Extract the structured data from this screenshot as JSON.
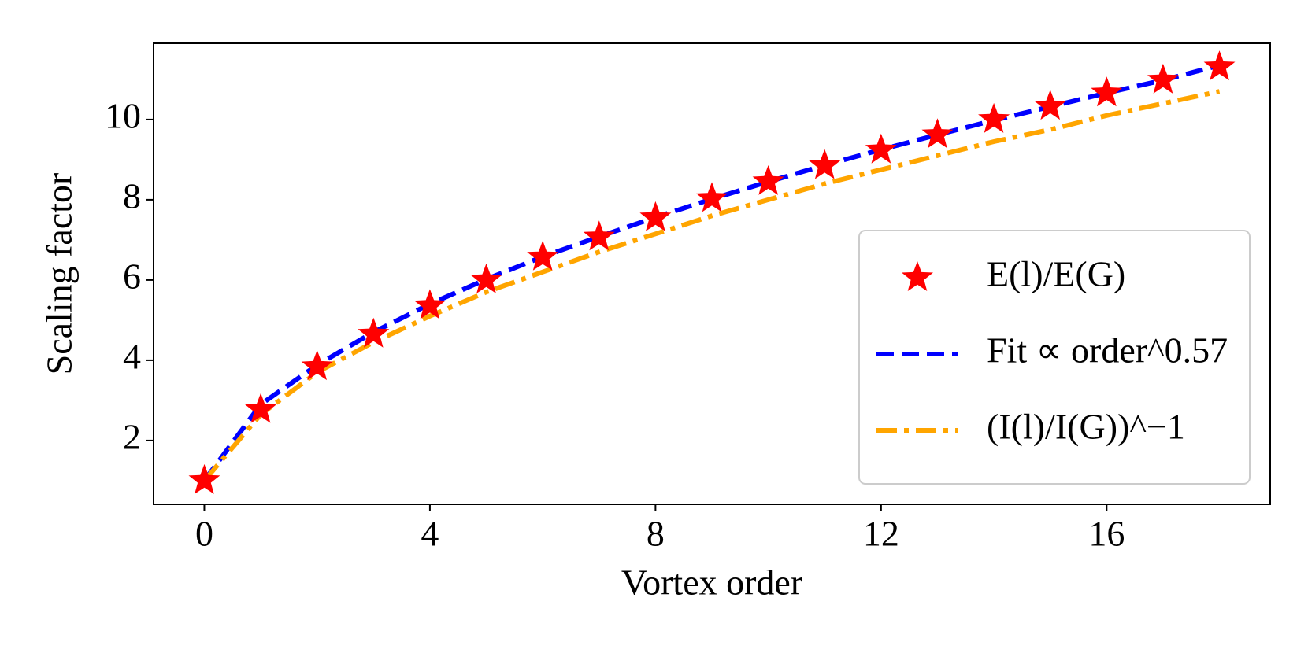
{
  "chart_data": {
    "type": "line",
    "x_label": "Vortex order",
    "y_label": "Scaling factor",
    "x": [
      0,
      1,
      2,
      3,
      4,
      5,
      6,
      7,
      8,
      9,
      10,
      11,
      12,
      13,
      14,
      15,
      16,
      17,
      18
    ],
    "series": [
      {
        "name": "E(l)/E(G)",
        "color": "#ff0000",
        "marker": "star",
        "values": [
          1.0,
          2.77,
          3.84,
          4.65,
          5.36,
          6.0,
          6.57,
          7.07,
          7.55,
          8.03,
          8.45,
          8.85,
          9.24,
          9.62,
          10.0,
          10.33,
          10.66,
          10.98,
          11.31
        ]
      },
      {
        "name": "Fit ∝ order^0.57",
        "color": "#0000ff",
        "linestyle": "dashed",
        "values": [
          1.0,
          2.9,
          3.88,
          4.7,
          5.4,
          6.02,
          6.58,
          7.08,
          7.56,
          8.02,
          8.45,
          8.86,
          9.25,
          9.62,
          9.98,
          10.32,
          10.66,
          10.98,
          11.35
        ]
      },
      {
        "name": "(I(l)/I(G))^−1",
        "color": "#ffa500",
        "linestyle": "dashdot",
        "values": [
          1.0,
          2.65,
          3.7,
          4.45,
          5.1,
          5.7,
          6.2,
          6.7,
          7.15,
          7.6,
          8.0,
          8.4,
          8.75,
          9.1,
          9.45,
          9.75,
          10.1,
          10.4,
          10.7
        ]
      }
    ],
    "xlim": [
      -0.9,
      18.9
    ],
    "ylim": [
      0.41,
      11.9
    ],
    "xticks": [
      0,
      4,
      8,
      12,
      16
    ],
    "yticks": [
      2,
      4,
      6,
      8,
      10
    ],
    "grid": false,
    "legend": "lower right"
  }
}
